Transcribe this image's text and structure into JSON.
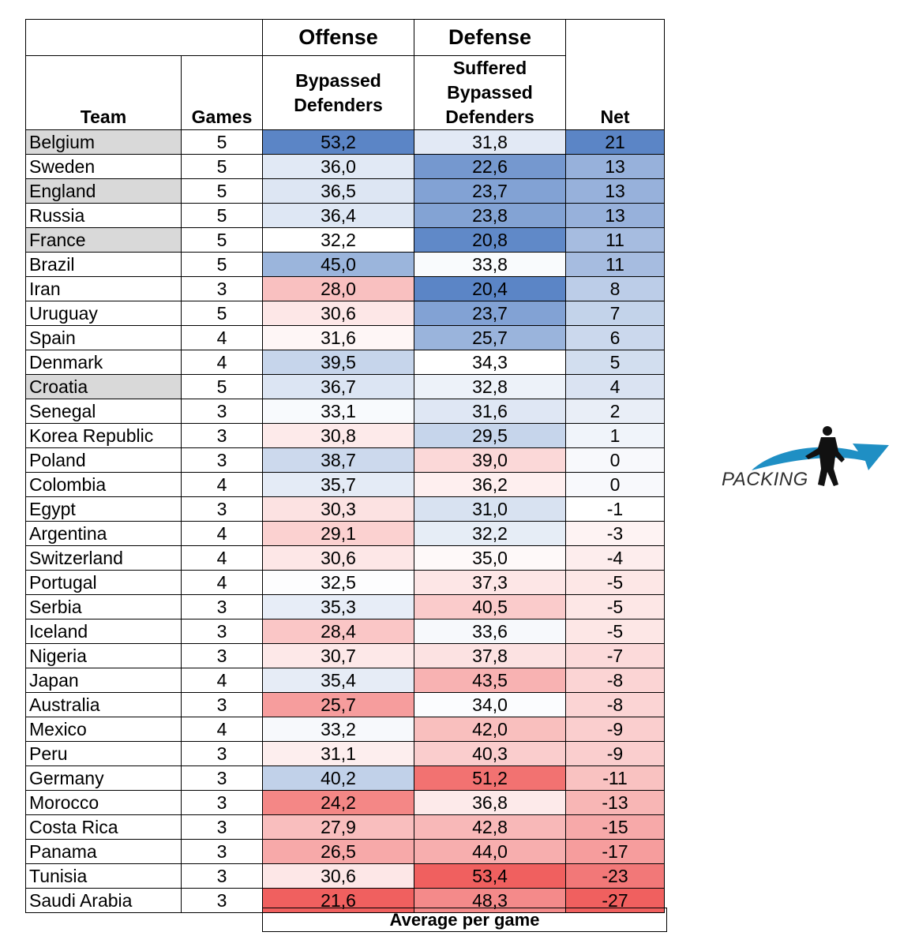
{
  "headers": {
    "team": "Team",
    "games": "Games",
    "offense": "Offense",
    "defense": "Defense",
    "offense_sub": [
      "Bypassed",
      "Defenders"
    ],
    "defense_sub": [
      "Suffered",
      "Bypassed",
      "Defenders"
    ],
    "net": "Net"
  },
  "rows": [
    {
      "team": "Belgium",
      "games": "5",
      "offense": "53,2",
      "defense": "31,8",
      "net": "21",
      "highlight": true
    },
    {
      "team": "Sweden",
      "games": "5",
      "offense": "36,0",
      "defense": "22,6",
      "net": "13",
      "highlight": false
    },
    {
      "team": "England",
      "games": "5",
      "offense": "36,5",
      "defense": "23,7",
      "net": "13",
      "highlight": true
    },
    {
      "team": "Russia",
      "games": "5",
      "offense": "36,4",
      "defense": "23,8",
      "net": "13",
      "highlight": false
    },
    {
      "team": "France",
      "games": "5",
      "offense": "32,2",
      "defense": "20,8",
      "net": "11",
      "highlight": true
    },
    {
      "team": "Brazil",
      "games": "5",
      "offense": "45,0",
      "defense": "33,8",
      "net": "11",
      "highlight": false
    },
    {
      "team": "Iran",
      "games": "3",
      "offense": "28,0",
      "defense": "20,4",
      "net": "8",
      "highlight": false
    },
    {
      "team": "Uruguay",
      "games": "5",
      "offense": "30,6",
      "defense": "23,7",
      "net": "7",
      "highlight": false
    },
    {
      "team": "Spain",
      "games": "4",
      "offense": "31,6",
      "defense": "25,7",
      "net": "6",
      "highlight": false
    },
    {
      "team": "Denmark",
      "games": "4",
      "offense": "39,5",
      "defense": "34,3",
      "net": "5",
      "highlight": false
    },
    {
      "team": "Croatia",
      "games": "5",
      "offense": "36,7",
      "defense": "32,8",
      "net": "4",
      "highlight": true
    },
    {
      "team": "Senegal",
      "games": "3",
      "offense": "33,1",
      "defense": "31,6",
      "net": "2",
      "highlight": false
    },
    {
      "team": "Korea Republic",
      "games": "3",
      "offense": "30,8",
      "defense": "29,5",
      "net": "1",
      "highlight": false
    },
    {
      "team": "Poland",
      "games": "3",
      "offense": "38,7",
      "defense": "39,0",
      "net": "0",
      "highlight": false
    },
    {
      "team": "Colombia",
      "games": "4",
      "offense": "35,7",
      "defense": "36,2",
      "net": "0",
      "highlight": false
    },
    {
      "team": "Egypt",
      "games": "3",
      "offense": "30,3",
      "defense": "31,0",
      "net": "-1",
      "highlight": false
    },
    {
      "team": "Argentina",
      "games": "4",
      "offense": "29,1",
      "defense": "32,2",
      "net": "-3",
      "highlight": false
    },
    {
      "team": "Switzerland",
      "games": "4",
      "offense": "30,6",
      "defense": "35,0",
      "net": "-4",
      "highlight": false
    },
    {
      "team": "Portugal",
      "games": "4",
      "offense": "32,5",
      "defense": "37,3",
      "net": "-5",
      "highlight": false
    },
    {
      "team": "Serbia",
      "games": "3",
      "offense": "35,3",
      "defense": "40,5",
      "net": "-5",
      "highlight": false
    },
    {
      "team": "Iceland",
      "games": "3",
      "offense": "28,4",
      "defense": "33,6",
      "net": "-5",
      "highlight": false
    },
    {
      "team": "Nigeria",
      "games": "3",
      "offense": "30,7",
      "defense": "37,8",
      "net": "-7",
      "highlight": false
    },
    {
      "team": "Japan",
      "games": "4",
      "offense": "35,4",
      "defense": "43,5",
      "net": "-8",
      "highlight": false
    },
    {
      "team": "Australia",
      "games": "3",
      "offense": "25,7",
      "defense": "34,0",
      "net": "-8",
      "highlight": false
    },
    {
      "team": "Mexico",
      "games": "4",
      "offense": "33,2",
      "defense": "42,0",
      "net": "-9",
      "highlight": false
    },
    {
      "team": "Peru",
      "games": "3",
      "offense": "31,1",
      "defense": "40,3",
      "net": "-9",
      "highlight": false
    },
    {
      "team": "Germany",
      "games": "3",
      "offense": "40,2",
      "defense": "51,2",
      "net": "-11",
      "highlight": false
    },
    {
      "team": "Morocco",
      "games": "3",
      "offense": "24,2",
      "defense": "36,8",
      "net": "-13",
      "highlight": false
    },
    {
      "team": "Costa Rica",
      "games": "3",
      "offense": "27,9",
      "defense": "42,8",
      "net": "-15",
      "highlight": false
    },
    {
      "team": "Panama",
      "games": "3",
      "offense": "26,5",
      "defense": "44,0",
      "net": "-17",
      "highlight": false
    },
    {
      "team": "Tunisia",
      "games": "3",
      "offense": "30,6",
      "defense": "53,4",
      "net": "-23",
      "highlight": false
    },
    {
      "team": "Saudi Arabia",
      "games": "3",
      "offense": "21,6",
      "defense": "48,3",
      "net": "-27",
      "highlight": false
    }
  ],
  "footer": "Average per game",
  "logo": {
    "text": "PACKING",
    "icon": "packing-player-swoosh-icon",
    "color": "#1f8fc4"
  },
  "colors": {
    "blue": "#5b85c6",
    "white": "#ffffff",
    "red": "#f0605f"
  }
}
